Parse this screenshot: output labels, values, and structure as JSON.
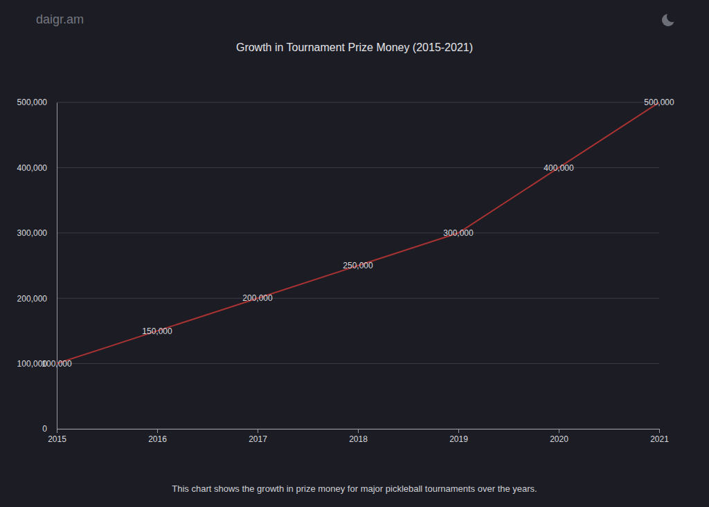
{
  "chart_data": {
    "type": "line",
    "title": "Growth in Tournament Prize Money (2015-2021)",
    "annotations": [
      "daigr.am",
      "This chart shows the growth in prize money for major pickleball tournaments over the years."
    ],
    "x": [
      2015,
      2016,
      2017,
      2018,
      2019,
      2020,
      2021
    ],
    "values": [
      100000,
      150000,
      200000,
      250000,
      300000,
      400000,
      500000
    ],
    "value_labels": [
      "100,000",
      "150,000",
      "200,000",
      "250,000",
      "300,000",
      "400,000",
      "500,000"
    ],
    "color": "#a83232",
    "data_labels": true,
    "grid": true,
    "xlim": [
      2015,
      2021
    ],
    "xticks": [
      2015,
      2016,
      2017,
      2018,
      2019,
      2020,
      2021
    ],
    "ylim": [
      0,
      500000
    ],
    "yticks": [
      0,
      {
        "value": 100000,
        "label": "100,000"
      },
      {
        "value": 200000,
        "label": "200,000"
      },
      {
        "value": 300000,
        "label": "300,000"
      },
      {
        "value": 400000,
        "label": "400,000"
      },
      {
        "value": 500000,
        "label": "500,000"
      }
    ]
  }
}
